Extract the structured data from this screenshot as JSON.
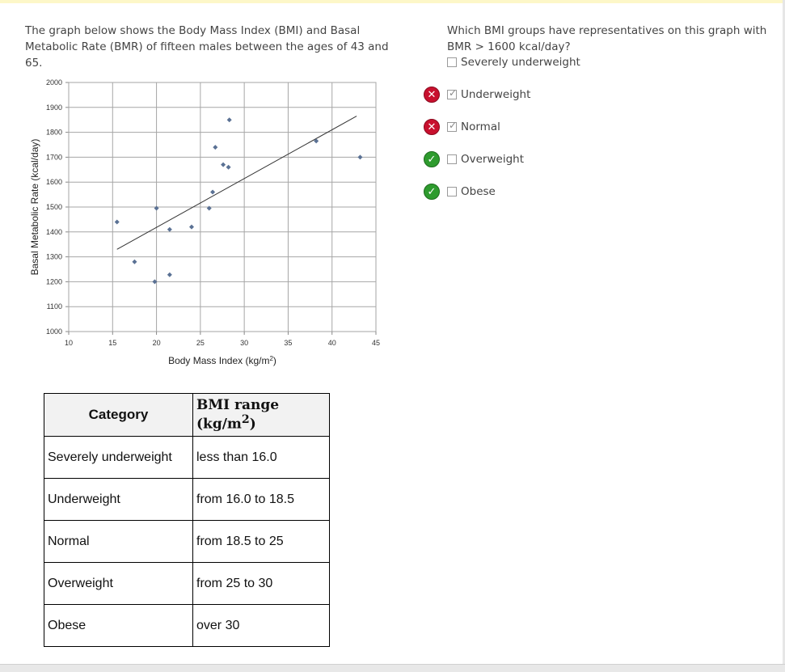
{
  "intro_text": "The graph below shows the Body Mass Index (BMI) and Basal Metabolic Rate (BMR) of fifteen males between the ages of 43 and 65.",
  "question": {
    "text": "Which BMI groups have representatives on this graph with BMR > 1600 kcal/day?",
    "options": [
      {
        "label": "Severely underweight",
        "checked": false,
        "mark": "none"
      },
      {
        "label": "Underweight",
        "checked": true,
        "mark": "wrong"
      },
      {
        "label": "Normal",
        "checked": true,
        "mark": "wrong"
      },
      {
        "label": "Overweight",
        "checked": false,
        "mark": "correct"
      },
      {
        "label": "Obese",
        "checked": false,
        "mark": "correct"
      }
    ],
    "mark_icons": {
      "wrong": "x-icon",
      "correct": "check-icon"
    },
    "colors": {
      "wrong": "#c8102e",
      "correct": "#2e9b2e"
    }
  },
  "chart_data": {
    "type": "scatter",
    "xlabel": "Body Mass Index (kg/m",
    "xlabel_sup": "2",
    "xlabel_end": ")",
    "ylabel": "Basal Metabolic Rate (kcal/day)",
    "xlim": [
      10,
      45
    ],
    "ylim": [
      1000,
      2000
    ],
    "xticks": [
      10,
      15,
      20,
      25,
      30,
      35,
      40,
      45
    ],
    "yticks": [
      1000,
      1100,
      1200,
      1300,
      1400,
      1500,
      1600,
      1700,
      1800,
      1900,
      2000
    ],
    "grid": true,
    "points": [
      [
        15.5,
        1440
      ],
      [
        17.5,
        1280
      ],
      [
        19.8,
        1200
      ],
      [
        20.0,
        1495
      ],
      [
        21.5,
        1410
      ],
      [
        21.5,
        1228
      ],
      [
        24.0,
        1420
      ],
      [
        26.0,
        1495
      ],
      [
        26.4,
        1560
      ],
      [
        26.7,
        1740
      ],
      [
        27.6,
        1670
      ],
      [
        28.2,
        1660
      ],
      [
        28.3,
        1850
      ],
      [
        38.2,
        1765
      ],
      [
        43.2,
        1700
      ]
    ],
    "trendline": [
      [
        15.5,
        1330
      ],
      [
        42.8,
        1865
      ]
    ],
    "marker_color": "#5a7194"
  },
  "table": {
    "headers": {
      "category": "Category",
      "range_main": "BMI range (kg/m",
      "range_sup": "2",
      "range_end": ")"
    },
    "rows": [
      {
        "category": "Severely underweight",
        "range": "less than 16.0"
      },
      {
        "category": "Underweight",
        "range": "from 16.0 to 18.5"
      },
      {
        "category": "Normal",
        "range": "from 18.5 to 25"
      },
      {
        "category": "Overweight",
        "range": "from 25 to 30"
      },
      {
        "category": "Obese",
        "range": "over 30"
      }
    ]
  }
}
